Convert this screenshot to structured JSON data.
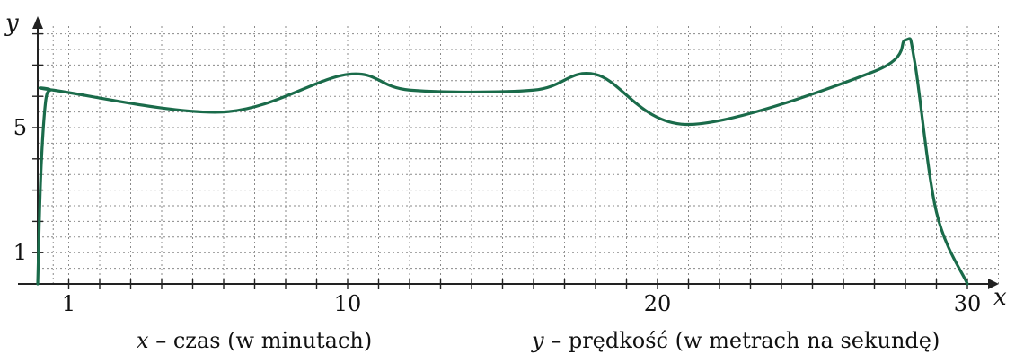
{
  "chart_data": {
    "type": "line",
    "title": "",
    "xlabel": "x",
    "ylabel": "y",
    "xlim": [
      0,
      31
    ],
    "ylim": [
      0,
      9
    ],
    "x_ticks_labeled": [
      1,
      10,
      20,
      30
    ],
    "y_ticks_labeled": [
      1,
      5
    ],
    "grid": true,
    "color": "#1a6b4a",
    "series": [
      {
        "x": [
          0,
          0.1,
          0.25,
          0.4,
          0.5,
          6,
          10,
          12,
          16,
          18,
          21,
          27,
          28,
          28.3,
          29,
          30
        ],
        "y": [
          0,
          3.5,
          5.8,
          6.2,
          6.2,
          5.5,
          6.7,
          6.2,
          6.2,
          6.7,
          5.1,
          6.8,
          7.8,
          7.1,
          2.3,
          0
        ]
      }
    ]
  },
  "captions": {
    "x_var": "x",
    "x_desc": "– czas (w minutach)",
    "y_var": "y",
    "y_desc": "– prędkość (w metrach na sekundę)"
  }
}
